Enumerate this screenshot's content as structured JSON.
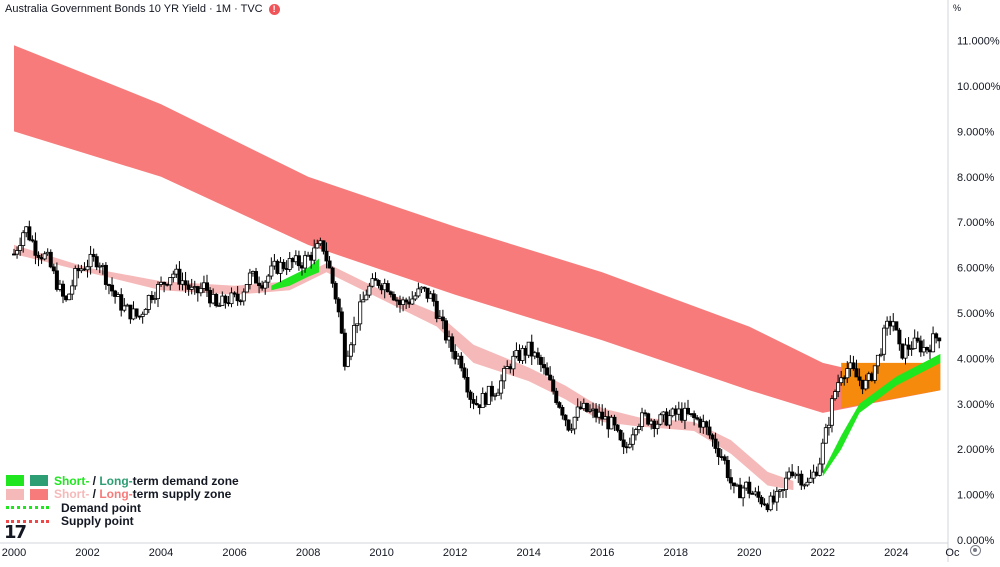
{
  "header": {
    "title": "Australia Government Bonds 10 YR Yield · 1M · TVC",
    "alert_glyph": "!",
    "unit": "%"
  },
  "legend": {
    "demand_short": "Short-",
    "demand_sep": " / ",
    "demand_long": "Long-",
    "demand_suffix": "term demand zone",
    "supply_short": "Short-",
    "supply_sep": " / ",
    "supply_long": "Long-",
    "supply_suffix": "term supply zone",
    "demand_point": "Demand point",
    "supply_point": "Supply point"
  },
  "logo_text": "17",
  "icons": {
    "settings": "gear-icon",
    "alert": "alert-icon"
  },
  "colors": {
    "bg": "#ffffff",
    "up": "#ffffff",
    "down": "#000000",
    "supply_long": "#f77b7b",
    "supply_short": "#f5b9b9",
    "demand_short": "#1fe61f",
    "demand_long": "#2d9e73",
    "orange": "#f68a0c",
    "axis_text": "#131722",
    "axis_line": "#d1d4dc"
  },
  "chart_data": {
    "type": "candlestick",
    "title": "Australia Government Bonds 10 YR Yield · 1M · TVC",
    "xlabel": "",
    "ylabel": "%",
    "xlim": [
      2000,
      2025.4
    ],
    "ylim": [
      0,
      11.3
    ],
    "y_ticks": [
      "0.000%",
      "1.000%",
      "2.000%",
      "3.000%",
      "4.000%",
      "5.000%",
      "6.000%",
      "7.000%",
      "8.000%",
      "9.000%",
      "10.000%",
      "11.000%"
    ],
    "x_ticks": [
      "2000",
      "2002",
      "2004",
      "2006",
      "2008",
      "2010",
      "2012",
      "2014",
      "2016",
      "2018",
      "2020",
      "2022",
      "2024",
      "Oc"
    ],
    "grid": false,
    "legend_position": "bottom-left",
    "close_path": [
      [
        2000.0,
        6.3
      ],
      [
        2000.3,
        6.9
      ],
      [
        2000.6,
        6.4
      ],
      [
        2000.9,
        6.2
      ],
      [
        2001.2,
        5.6
      ],
      [
        2001.4,
        5.2
      ],
      [
        2001.7,
        5.9
      ],
      [
        2002.0,
        6.1
      ],
      [
        2002.3,
        6.2
      ],
      [
        2002.6,
        5.6
      ],
      [
        2002.8,
        5.3
      ],
      [
        2003.0,
        5.1
      ],
      [
        2003.4,
        4.9
      ],
      [
        2003.7,
        5.4
      ],
      [
        2004.0,
        5.6
      ],
      [
        2004.3,
        5.9
      ],
      [
        2004.6,
        5.7
      ],
      [
        2004.9,
        5.4
      ],
      [
        2005.2,
        5.6
      ],
      [
        2005.5,
        5.1
      ],
      [
        2005.8,
        5.3
      ],
      [
        2006.1,
        5.3
      ],
      [
        2006.4,
        5.8
      ],
      [
        2006.8,
        5.7
      ],
      [
        2007.1,
        6.0
      ],
      [
        2007.5,
        6.1
      ],
      [
        2007.8,
        6.1
      ],
      [
        2008.1,
        6.3
      ],
      [
        2008.4,
        6.5
      ],
      [
        2008.6,
        5.9
      ],
      [
        2008.8,
        5.2
      ],
      [
        2009.0,
        4.0
      ],
      [
        2009.3,
        4.8
      ],
      [
        2009.6,
        5.5
      ],
      [
        2009.9,
        5.7
      ],
      [
        2010.2,
        5.6
      ],
      [
        2010.5,
        5.2
      ],
      [
        2010.8,
        5.3
      ],
      [
        2011.1,
        5.5
      ],
      [
        2011.4,
        5.3
      ],
      [
        2011.6,
        4.8
      ],
      [
        2011.9,
        4.2
      ],
      [
        2012.2,
        3.9
      ],
      [
        2012.4,
        3.2
      ],
      [
        2012.6,
        3.0
      ],
      [
        2012.9,
        3.2
      ],
      [
        2013.2,
        3.4
      ],
      [
        2013.5,
        3.9
      ],
      [
        2013.8,
        4.1
      ],
      [
        2014.0,
        4.2
      ],
      [
        2014.3,
        3.9
      ],
      [
        2014.6,
        3.4
      ],
      [
        2014.9,
        2.9
      ],
      [
        2015.1,
        2.5
      ],
      [
        2015.4,
        2.9
      ],
      [
        2015.7,
        2.8
      ],
      [
        2016.0,
        2.7
      ],
      [
        2016.3,
        2.5
      ],
      [
        2016.6,
        1.9
      ],
      [
        2016.9,
        2.6
      ],
      [
        2017.2,
        2.7
      ],
      [
        2017.5,
        2.6
      ],
      [
        2017.8,
        2.7
      ],
      [
        2018.1,
        2.8
      ],
      [
        2018.4,
        2.7
      ],
      [
        2018.7,
        2.6
      ],
      [
        2019.0,
        2.2
      ],
      [
        2019.3,
        1.8
      ],
      [
        2019.6,
        1.0
      ],
      [
        2019.9,
        1.2
      ],
      [
        2020.1,
        1.0
      ],
      [
        2020.3,
        0.9
      ],
      [
        2020.6,
        0.8
      ],
      [
        2020.9,
        1.0
      ],
      [
        2021.1,
        1.6
      ],
      [
        2021.4,
        1.4
      ],
      [
        2021.6,
        1.2
      ],
      [
        2021.9,
        1.7
      ],
      [
        2022.1,
        2.4
      ],
      [
        2022.3,
        3.2
      ],
      [
        2022.5,
        3.7
      ],
      [
        2022.7,
        3.8
      ],
      [
        2022.9,
        3.6
      ],
      [
        2023.2,
        3.4
      ],
      [
        2023.5,
        4.0
      ],
      [
        2023.7,
        4.6
      ],
      [
        2023.9,
        4.9
      ],
      [
        2024.1,
        4.1
      ],
      [
        2024.4,
        4.3
      ],
      [
        2024.6,
        4.3
      ],
      [
        2024.8,
        4.2
      ],
      [
        2025.0,
        4.4
      ],
      [
        2025.2,
        4.55
      ]
    ],
    "zones": {
      "long_term_supply_upper": [
        [
          2000,
          10.9
        ],
        [
          2004,
          9.6
        ],
        [
          2008,
          8.0
        ],
        [
          2012,
          6.9
        ],
        [
          2016,
          5.9
        ],
        [
          2020,
          4.7
        ],
        [
          2022,
          3.9
        ],
        [
          2025.2,
          3.3
        ]
      ],
      "long_term_supply_lower": [
        [
          2000,
          9.0
        ],
        [
          2004,
          8.0
        ],
        [
          2008,
          6.5
        ],
        [
          2012,
          5.4
        ],
        [
          2016,
          4.4
        ],
        [
          2020,
          3.3
        ],
        [
          2022,
          2.8
        ],
        [
          2025.2,
          3.3
        ]
      ],
      "short_term_supply_upper": [
        [
          2000,
          6.5
        ],
        [
          2002,
          6.0
        ],
        [
          2004,
          5.7
        ],
        [
          2006,
          5.6
        ],
        [
          2007.5,
          5.7
        ],
        [
          2008.5,
          6.1
        ],
        [
          2010,
          5.5
        ],
        [
          2011.5,
          5.0
        ],
        [
          2012.5,
          4.3
        ],
        [
          2014,
          3.8
        ],
        [
          2015,
          3.4
        ],
        [
          2016,
          2.9
        ],
        [
          2017,
          2.7
        ],
        [
          2018.5,
          2.6
        ],
        [
          2019.5,
          2.2
        ],
        [
          2020.5,
          1.5
        ],
        [
          2021.2,
          1.3
        ]
      ],
      "short_term_supply_lower": [
        [
          2000,
          6.3
        ],
        [
          2002,
          5.9
        ],
        [
          2004,
          5.5
        ],
        [
          2006,
          5.4
        ],
        [
          2007.5,
          5.5
        ],
        [
          2008.5,
          5.9
        ],
        [
          2010,
          5.3
        ],
        [
          2011.5,
          4.7
        ],
        [
          2012.5,
          3.9
        ],
        [
          2014,
          3.5
        ],
        [
          2015,
          3.1
        ],
        [
          2016,
          2.6
        ],
        [
          2017,
          2.5
        ],
        [
          2018.5,
          2.4
        ],
        [
          2019.5,
          1.9
        ],
        [
          2020.5,
          1.2
        ],
        [
          2021.2,
          1.1
        ]
      ],
      "short_term_demand_upper": [
        [
          2007,
          5.6
        ],
        [
          2007.5,
          5.8
        ],
        [
          2008.0,
          6.0
        ],
        [
          2008.3,
          6.2
        ],
        [
          2022.0,
          1.5
        ],
        [
          2022.5,
          2.3
        ],
        [
          2023.0,
          3.0
        ],
        [
          2024.0,
          3.6
        ],
        [
          2025.2,
          4.1
        ]
      ],
      "short_term_demand_lower": [
        [
          2007,
          5.5
        ],
        [
          2007.5,
          5.6
        ],
        [
          2008.0,
          5.8
        ],
        [
          2008.3,
          5.9
        ],
        [
          2022.0,
          1.4
        ],
        [
          2022.5,
          2.0
        ],
        [
          2023.0,
          2.8
        ],
        [
          2024.0,
          3.4
        ],
        [
          2025.2,
          3.9
        ]
      ],
      "orange_band_upper": [
        [
          2022.5,
          3.9
        ],
        [
          2025.2,
          3.9
        ]
      ],
      "orange_band_lower": [
        [
          2022.5,
          2.9
        ],
        [
          2025.2,
          3.3
        ]
      ]
    }
  }
}
